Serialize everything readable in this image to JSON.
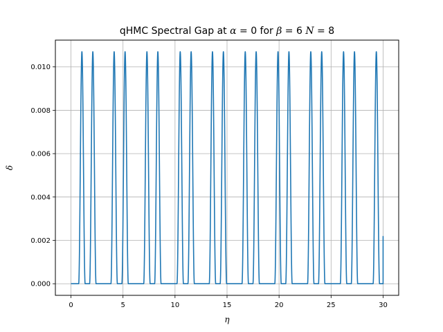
{
  "chart_data": {
    "type": "line",
    "title": "qHMC Spectral Gap at α = 0 for β =  6 N = 8",
    "title_parts": {
      "prefix": "qHMC Spectral Gap at ",
      "sym1": "α",
      "eq1": " = 0 for ",
      "sym2": "β",
      "eq2": " =  6 ",
      "sym3": "N",
      "eq3": " = 8"
    },
    "xlabel": "η",
    "ylabel": "δ",
    "xlim": [
      -1.5,
      31.5
    ],
    "ylim": [
      -0.000535,
      0.011235
    ],
    "xticks": [
      0,
      5,
      10,
      15,
      20,
      25,
      30
    ],
    "xtick_labels": [
      "0",
      "5",
      "10",
      "15",
      "20",
      "25",
      "30"
    ],
    "yticks": [
      0.0,
      0.002,
      0.004,
      0.006,
      0.008,
      0.01
    ],
    "ytick_labels": [
      "0.000",
      "0.002",
      "0.004",
      "0.006",
      "0.008",
      "0.010"
    ],
    "grid": true,
    "line_color": "#1f77b4",
    "peak_value": 0.0107,
    "peak_width": 0.62,
    "peak_centers": [
      1.05,
      2.1,
      4.15,
      5.2,
      7.3,
      8.35,
      10.5,
      11.55,
      13.6,
      14.65,
      16.75,
      17.8,
      19.9,
      20.95,
      23.05,
      24.1,
      26.2,
      27.25,
      29.35
    ],
    "end_point": {
      "x": 30.0,
      "y": 0.0022
    }
  }
}
